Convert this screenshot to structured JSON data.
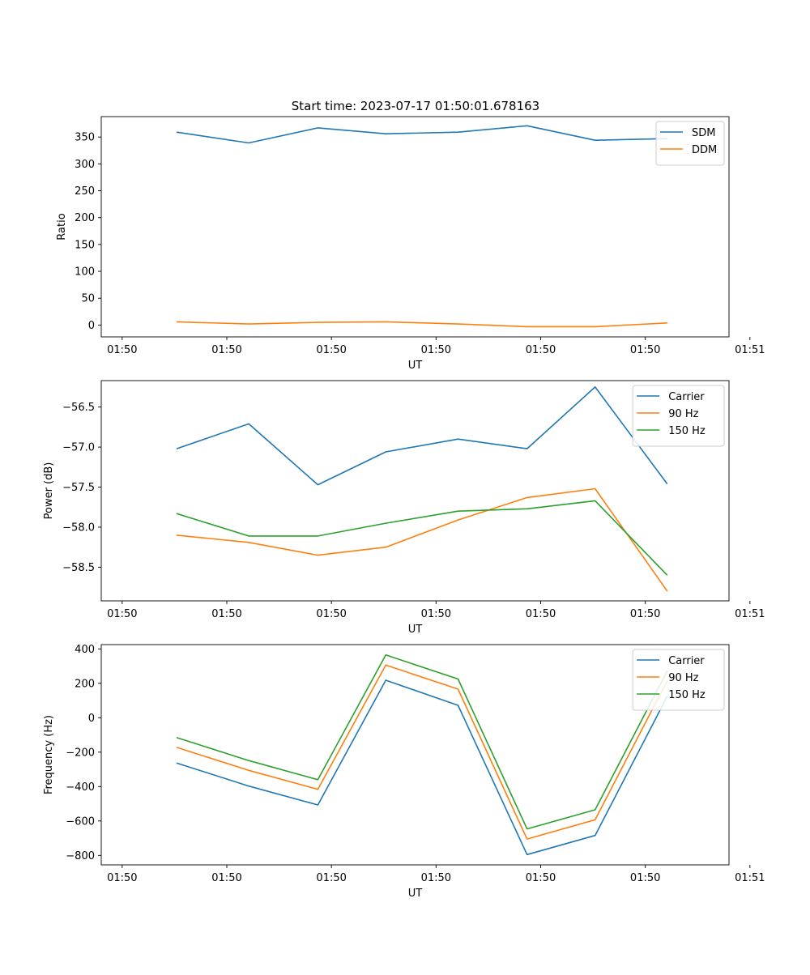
{
  "figure_title": "Start time: 2023-07-17 01:50:01.678163",
  "chart_data": [
    {
      "type": "line",
      "title": "Start time: 2023-07-17 01:50:01.678163",
      "xlabel": "UT",
      "ylabel": "Ratio",
      "x": [
        0.72,
        1.41,
        2.07,
        2.72,
        3.41,
        4.07,
        4.72,
        5.41
      ],
      "xlim": [
        0,
        6
      ],
      "x_ticks": [
        0.2,
        1.2,
        2.2,
        3.2,
        4.2,
        5.2,
        6.2
      ],
      "x_tick_labels": [
        "01:50",
        "01:50",
        "01:50",
        "01:50",
        "01:50",
        "01:50",
        "01:51"
      ],
      "ylim": [
        -22,
        388
      ],
      "y_ticks": [
        0,
        50,
        100,
        150,
        200,
        250,
        300,
        350
      ],
      "y_tick_labels": [
        "0",
        "50",
        "100",
        "150",
        "200",
        "250",
        "300",
        "350"
      ],
      "legend_position": "top-right",
      "series": [
        {
          "name": "SDM",
          "color": "#1f77b4",
          "values": [
            359,
            339,
            367,
            356,
            359,
            371,
            344,
            347
          ]
        },
        {
          "name": "DDM",
          "color": "#ff7f0e",
          "values": [
            6,
            2,
            5,
            6,
            2,
            -3,
            -3,
            4
          ]
        }
      ]
    },
    {
      "type": "line",
      "title": "",
      "xlabel": "UT",
      "ylabel": "Power (dB)",
      "x": [
        0.72,
        1.41,
        2.07,
        2.72,
        3.41,
        4.07,
        4.72,
        5.41
      ],
      "xlim": [
        0,
        6
      ],
      "x_ticks": [
        0.2,
        1.2,
        2.2,
        3.2,
        4.2,
        5.2,
        6.2
      ],
      "x_tick_labels": [
        "01:50",
        "01:50",
        "01:50",
        "01:50",
        "01:50",
        "01:50",
        "01:51"
      ],
      "ylim": [
        -58.92,
        -56.17
      ],
      "y_ticks": [
        -58.5,
        -58.0,
        -57.5,
        -57.0,
        -56.5
      ],
      "y_tick_labels": [
        "−58.5",
        "−58.0",
        "−57.5",
        "−57.0",
        "−56.5"
      ],
      "legend_position": "top-right",
      "series": [
        {
          "name": "Carrier",
          "color": "#1f77b4",
          "values": [
            -57.02,
            -56.71,
            -57.47,
            -57.06,
            -56.9,
            -57.02,
            -56.25,
            -57.46
          ]
        },
        {
          "name": "90 Hz",
          "color": "#ff7f0e",
          "values": [
            -58.1,
            -58.19,
            -58.35,
            -58.25,
            -57.91,
            -57.63,
            -57.52,
            -58.8
          ]
        },
        {
          "name": "150 Hz",
          "color": "#2ca02c",
          "values": [
            -57.83,
            -58.11,
            -58.11,
            -57.95,
            -57.8,
            -57.77,
            -57.67,
            -58.6
          ]
        }
      ]
    },
    {
      "type": "line",
      "title": "",
      "xlabel": "UT",
      "ylabel": "Frequency (Hz)",
      "x": [
        0.72,
        1.41,
        2.07,
        2.72,
        3.41,
        4.07,
        4.72,
        5.41
      ],
      "xlim": [
        0,
        6
      ],
      "x_ticks": [
        0.2,
        1.2,
        2.2,
        3.2,
        4.2,
        5.2,
        6.2
      ],
      "x_tick_labels": [
        "01:50",
        "01:50",
        "01:50",
        "01:50",
        "01:50",
        "01:50",
        "01:51"
      ],
      "ylim": [
        -855,
        425
      ],
      "y_ticks": [
        -800,
        -600,
        -400,
        -200,
        0,
        200,
        400
      ],
      "y_tick_labels": [
        "−800",
        "−600",
        "−400",
        "−200",
        "0",
        "200",
        "400"
      ],
      "legend_position": "top-right",
      "series": [
        {
          "name": "Carrier",
          "color": "#1f77b4",
          "values": [
            -263,
            -397,
            -507,
            218,
            72,
            -795,
            -684,
            125
          ]
        },
        {
          "name": "90 Hz",
          "color": "#ff7f0e",
          "values": [
            -172,
            -306,
            -416,
            306,
            166,
            -705,
            -593,
            216
          ]
        },
        {
          "name": "150 Hz",
          "color": "#2ca02c",
          "values": [
            -115,
            -249,
            -360,
            365,
            225,
            -646,
            -535,
            272
          ]
        }
      ]
    }
  ]
}
